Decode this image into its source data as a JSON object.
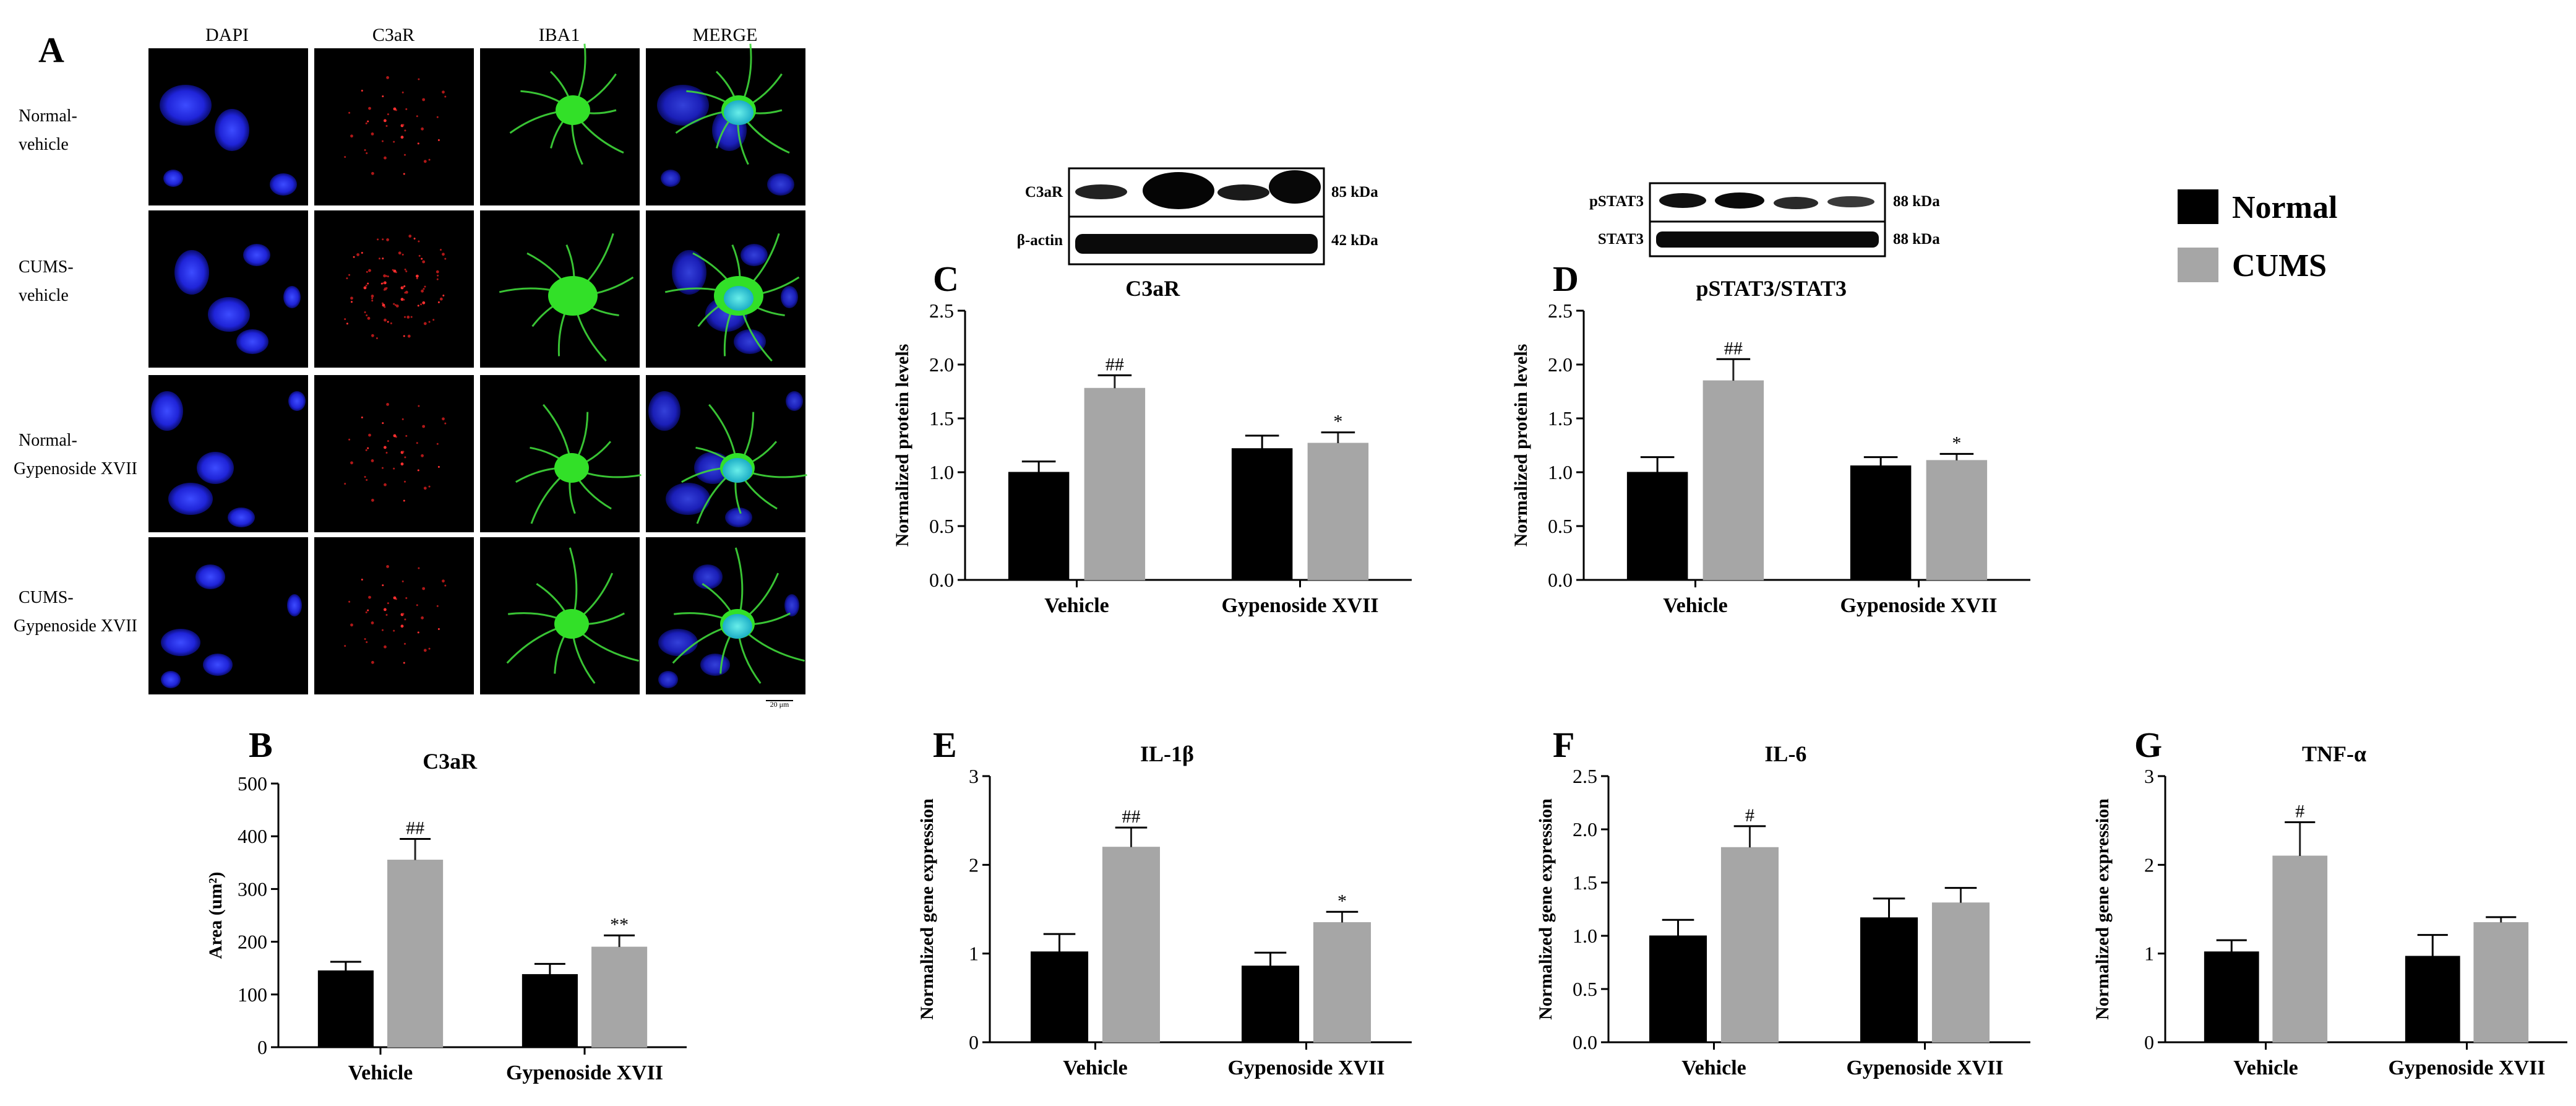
{
  "panel_letters": [
    "A",
    "B",
    "C",
    "D",
    "E",
    "F",
    "G"
  ],
  "legend": {
    "items": [
      {
        "label": "Normal",
        "color": "#000000"
      },
      {
        "label": "CUMS",
        "color": "#a6a6a6"
      }
    ]
  },
  "micrograph": {
    "columns": [
      "DAPI",
      "C3aR",
      "IBA1",
      "MERGE"
    ],
    "rows": [
      {
        "line1": "Normal-",
        "line2": "vehicle"
      },
      {
        "line1": "CUMS-",
        "line2": "vehicle"
      },
      {
        "line1": "Normal-",
        "line2": "Gypenoside XVII"
      },
      {
        "line1": "CUMS-",
        "line2": "Gypenoside XVII"
      }
    ],
    "scale_bar": "20 μm"
  },
  "blots": [
    {
      "rows": [
        {
          "label": "C3aR",
          "kda": "85 kDa"
        },
        {
          "label": "β-actin",
          "kda": "42 kDa"
        }
      ]
    },
    {
      "rows": [
        {
          "label": "pSTAT3",
          "kda": "88 kDa"
        },
        {
          "label": "STAT3",
          "kda": "88 kDa"
        }
      ]
    }
  ],
  "chart_data": [
    {
      "panel": "B",
      "type": "bar",
      "title": "C3aR",
      "ylabel": "Area (um²)",
      "ylim": [
        0,
        500
      ],
      "yticks": [
        "0",
        "100",
        "200",
        "300",
        "400",
        "500"
      ],
      "categories": [
        "Vehicle",
        "Gypenoside XVII"
      ],
      "series": [
        {
          "name": "Normal",
          "values": [
            145,
            138
          ],
          "errors": [
            17,
            20
          ]
        },
        {
          "name": "CUMS",
          "values": [
            355,
            190
          ],
          "errors": [
            40,
            22
          ]
        }
      ],
      "annotations": [
        {
          "category": 0,
          "series": 1,
          "text": "##"
        },
        {
          "category": 1,
          "series": 1,
          "text": "**"
        }
      ]
    },
    {
      "panel": "C",
      "type": "bar",
      "title": "C3aR",
      "ylabel": "Normalized protein levels",
      "ylim": [
        0,
        2.5
      ],
      "yticks": [
        "0.0",
        "0.5",
        "1.0",
        "1.5",
        "2.0",
        "2.5"
      ],
      "categories": [
        "Vehicle",
        "Gypenoside XVII"
      ],
      "series": [
        {
          "name": "Normal",
          "values": [
            1.0,
            1.22
          ],
          "errors": [
            0.1,
            0.12
          ]
        },
        {
          "name": "CUMS",
          "values": [
            1.78,
            1.27
          ],
          "errors": [
            0.12,
            0.1
          ]
        }
      ],
      "annotations": [
        {
          "category": 0,
          "series": 1,
          "text": "##"
        },
        {
          "category": 1,
          "series": 1,
          "text": "*"
        }
      ]
    },
    {
      "panel": "D",
      "type": "bar",
      "title": "pSTAT3/STAT3",
      "ylabel": "Normalized protein levels",
      "ylim": [
        0,
        2.5
      ],
      "yticks": [
        "0.0",
        "0.5",
        "1.0",
        "1.5",
        "2.0",
        "2.5"
      ],
      "categories": [
        "Vehicle",
        "Gypenoside XVII"
      ],
      "series": [
        {
          "name": "Normal",
          "values": [
            1.0,
            1.06
          ],
          "errors": [
            0.14,
            0.08
          ]
        },
        {
          "name": "CUMS",
          "values": [
            1.85,
            1.11
          ],
          "errors": [
            0.2,
            0.06
          ]
        }
      ],
      "annotations": [
        {
          "category": 0,
          "series": 1,
          "text": "##"
        },
        {
          "category": 1,
          "series": 1,
          "text": "*"
        }
      ]
    },
    {
      "panel": "E",
      "type": "bar",
      "title": "IL-1β",
      "ylabel": "Normalized gene expression",
      "ylim": [
        0,
        3
      ],
      "yticks": [
        "0",
        "1",
        "2",
        "3"
      ],
      "categories": [
        "Vehicle",
        "Gypenoside XVII"
      ],
      "series": [
        {
          "name": "Normal",
          "values": [
            1.02,
            0.86
          ],
          "errors": [
            0.2,
            0.15
          ]
        },
        {
          "name": "CUMS",
          "values": [
            2.2,
            1.35
          ],
          "errors": [
            0.22,
            0.12
          ]
        }
      ],
      "annotations": [
        {
          "category": 0,
          "series": 1,
          "text": "##"
        },
        {
          "category": 1,
          "series": 1,
          "text": "*"
        }
      ]
    },
    {
      "panel": "F",
      "type": "bar",
      "title": "IL-6",
      "ylabel": "Normalized gene expression",
      "ylim": [
        0,
        2.5
      ],
      "yticks": [
        "0.0",
        "0.5",
        "1.0",
        "1.5",
        "2.0",
        "2.5"
      ],
      "categories": [
        "Vehicle",
        "Gypenoside XVII"
      ],
      "series": [
        {
          "name": "Normal",
          "values": [
            1.0,
            1.17
          ],
          "errors": [
            0.15,
            0.18
          ]
        },
        {
          "name": "CUMS",
          "values": [
            1.83,
            1.31
          ],
          "errors": [
            0.2,
            0.14
          ]
        }
      ],
      "annotations": [
        {
          "category": 0,
          "series": 1,
          "text": "#"
        }
      ]
    },
    {
      "panel": "G",
      "type": "bar",
      "title": "TNF-α",
      "ylabel": "Normalized gene expression",
      "ylim": [
        0,
        3
      ],
      "yticks": [
        "0",
        "1",
        "2",
        "3"
      ],
      "categories": [
        "Vehicle",
        "Gypenoside XVII"
      ],
      "series": [
        {
          "name": "Normal",
          "values": [
            1.02,
            0.97
          ],
          "errors": [
            0.13,
            0.24
          ]
        },
        {
          "name": "CUMS",
          "values": [
            2.1,
            1.35
          ],
          "errors": [
            0.38,
            0.06
          ]
        }
      ],
      "annotations": [
        {
          "category": 0,
          "series": 1,
          "text": "#"
        }
      ]
    }
  ]
}
